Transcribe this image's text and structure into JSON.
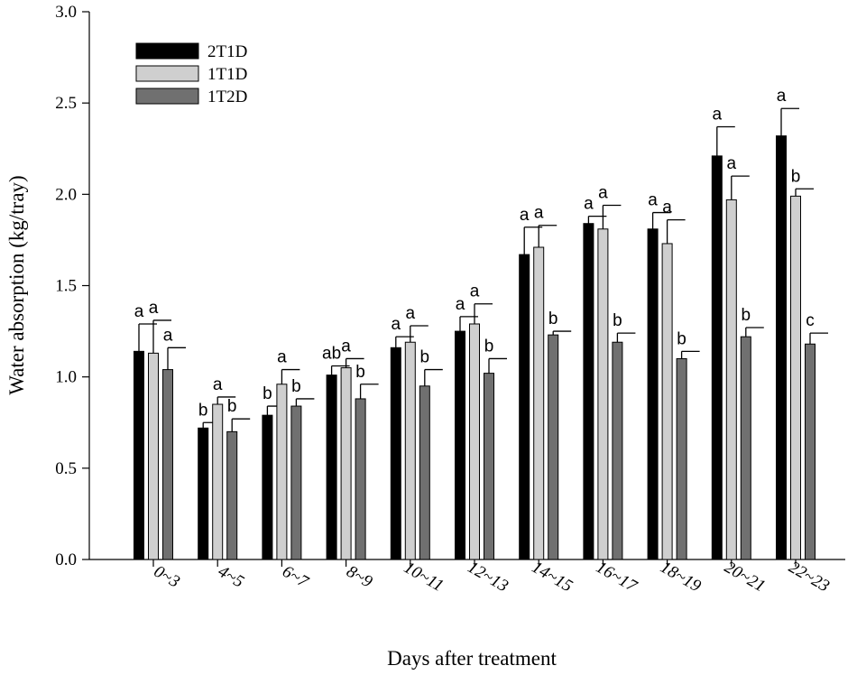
{
  "chart_data": {
    "type": "bar",
    "xlabel": "Days after treatment",
    "ylabel": "Water absorption (kg/tray)",
    "ylim": [
      0,
      3.0
    ],
    "yticks": [
      "0.0",
      "0.5",
      "1.0",
      "1.5",
      "2.0",
      "2.5",
      "3.0"
    ],
    "categories": [
      "0~3",
      "4~5",
      "6~7",
      "8~9",
      "10~11",
      "12~13",
      "14~15",
      "16~17",
      "18~19",
      "20~21",
      "22~23"
    ],
    "legend_position": "top-left",
    "series": [
      {
        "name": "2T1D",
        "color": "#000000",
        "values": [
          1.14,
          0.72,
          0.79,
          1.01,
          1.16,
          1.25,
          1.67,
          1.84,
          1.81,
          2.21,
          2.32
        ],
        "errors": [
          0.15,
          0.03,
          0.05,
          0.05,
          0.06,
          0.08,
          0.15,
          0.04,
          0.09,
          0.16,
          0.15
        ],
        "labels": [
          "a",
          "b",
          "b",
          "ab",
          "a",
          "a",
          "a",
          "a",
          "a",
          "a",
          "a"
        ]
      },
      {
        "name": "1T1D",
        "color": "#cfcfcf",
        "values": [
          1.13,
          0.85,
          0.96,
          1.05,
          1.19,
          1.29,
          1.71,
          1.81,
          1.73,
          1.97,
          1.99
        ],
        "errors": [
          0.18,
          0.04,
          0.08,
          0.05,
          0.09,
          0.11,
          0.12,
          0.13,
          0.13,
          0.13,
          0.04
        ],
        "labels": [
          "a",
          "a",
          "a",
          "a",
          "a",
          "a",
          "a",
          "a",
          "a",
          "a",
          "b"
        ]
      },
      {
        "name": "1T2D",
        "color": "#707070",
        "values": [
          1.04,
          0.7,
          0.84,
          0.88,
          0.95,
          1.02,
          1.23,
          1.19,
          1.1,
          1.22,
          1.18
        ],
        "errors": [
          0.12,
          0.07,
          0.04,
          0.08,
          0.09,
          0.08,
          0.02,
          0.05,
          0.04,
          0.05,
          0.06
        ],
        "labels": [
          "a",
          "b",
          "b",
          "b",
          "b",
          "b",
          "b",
          "b",
          "b",
          "b",
          "c"
        ]
      }
    ]
  }
}
